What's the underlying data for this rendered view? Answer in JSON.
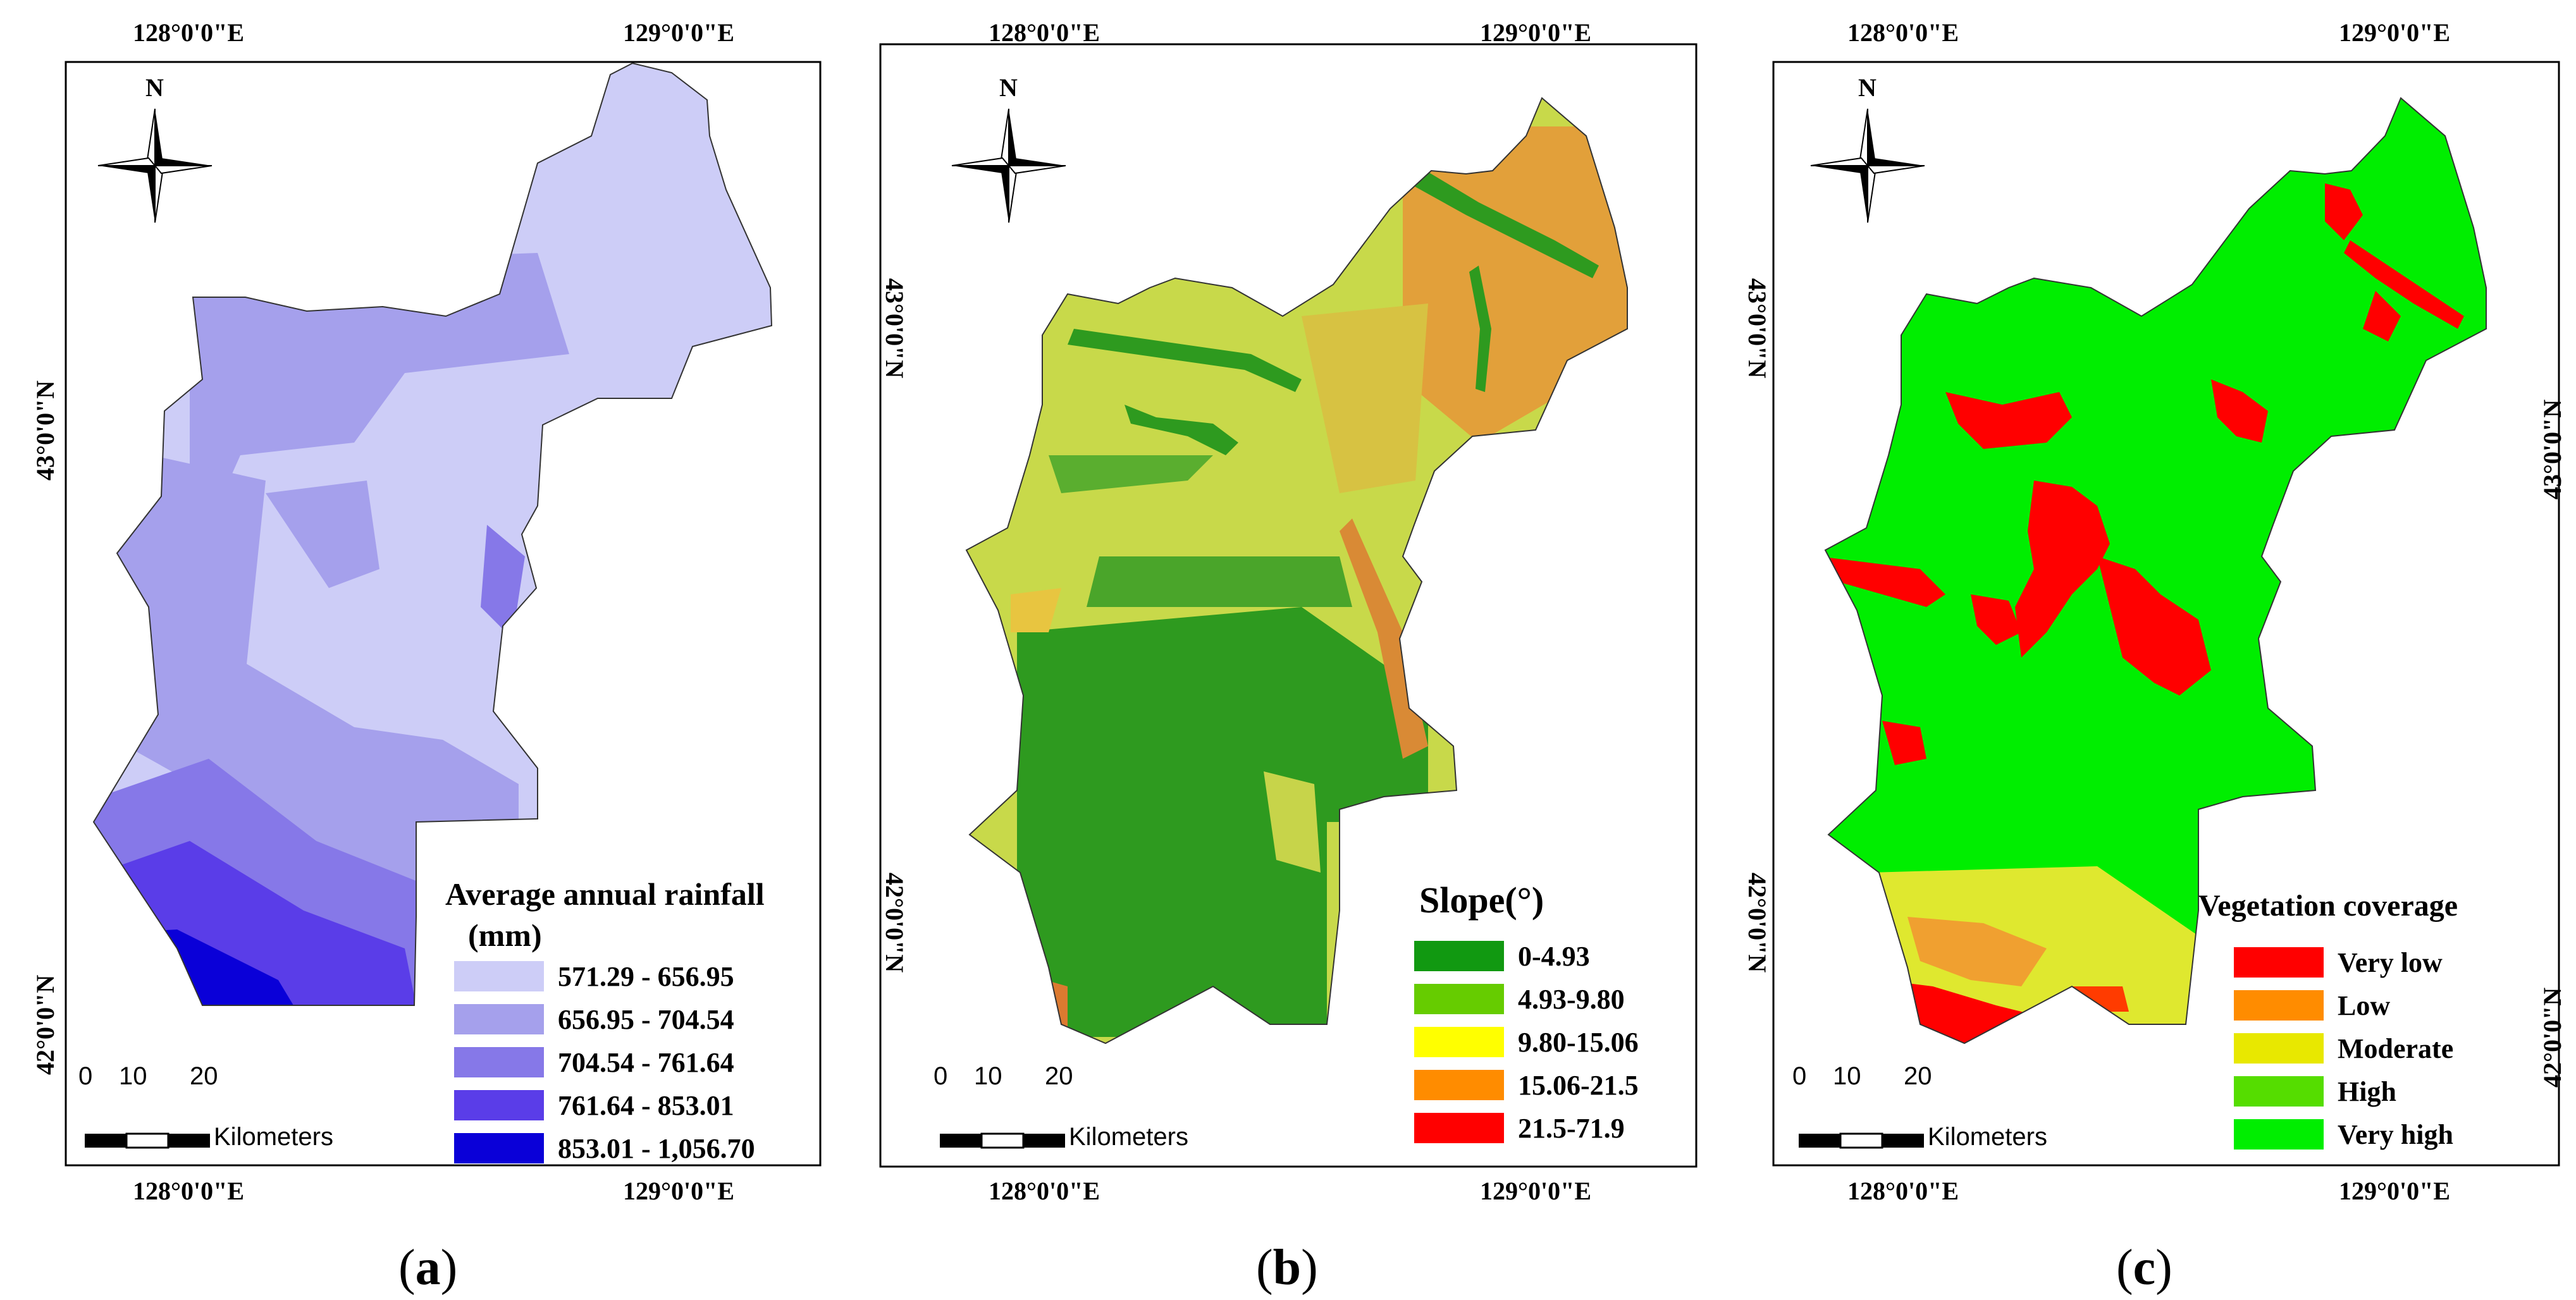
{
  "figure": {
    "panels": [
      {
        "id": "a",
        "caption_letter": "a",
        "top_lon_labels": [
          "128°0'0\"E",
          "129°0'0\"E"
        ],
        "bottom_lon_labels": [
          "128°0'0\"E",
          "129°0'0\"E"
        ],
        "left_lat_labels": [
          "43°0'0\"N",
          "42°0'0\"N"
        ],
        "right_lat_labels": [],
        "legend_title_line1": "Average annual rainfall",
        "legend_title_line2": "(mm)",
        "legend": [
          {
            "label": "571.29 - 656.95",
            "color": "#cdcdf7"
          },
          {
            "label": "656.95 - 704.54",
            "color": "#a5a0ec"
          },
          {
            "label": "704.54 - 761.64",
            "color": "#8678e8"
          },
          {
            "label": "761.64 - 853.01",
            "color": "#5a3de8"
          },
          {
            "label": "853.01 - 1,056.70",
            "color": "#0a00d8"
          }
        ],
        "north": "N",
        "scale_numbers": [
          "0",
          "10",
          "20"
        ],
        "scale_unit": "Kilometers"
      },
      {
        "id": "b",
        "caption_letter": "b",
        "top_lon_labels": [
          "128°0'0\"E",
          "129°0'0\"E"
        ],
        "bottom_lon_labels": [
          "128°0'0\"E",
          "129°0'0\"E"
        ],
        "left_lat_labels": [
          "43°0'0\"N",
          "42°0'0\"N"
        ],
        "right_lat_labels": [],
        "legend_title_line1": "Slope(°)",
        "legend_title_line2": "",
        "legend": [
          {
            "label": "0-4.93",
            "color": "#119911"
          },
          {
            "label": "4.93-9.80",
            "color": "#66cc00"
          },
          {
            "label": "9.80-15.06",
            "color": "#ffff00"
          },
          {
            "label": "15.06-21.5",
            "color": "#ff8c00"
          },
          {
            "label": "21.5-71.9",
            "color": "#ff0000"
          }
        ],
        "north": "N",
        "scale_numbers": [
          "0",
          "10",
          "20"
        ],
        "scale_unit": "Kilometers"
      },
      {
        "id": "c",
        "caption_letter": "c",
        "top_lon_labels": [
          "128°0'0\"E",
          "129°0'0\"E"
        ],
        "bottom_lon_labels": [
          "128°0'0\"E",
          "129°0'0\"E"
        ],
        "left_lat_labels": [
          "43°0'0\"N",
          "42°0'0\"N"
        ],
        "right_lat_labels": [
          "43°0'0\"N",
          "42°0'0\"N"
        ],
        "legend_title_line1": "Vegetation coverage",
        "legend_title_line2": "",
        "legend": [
          {
            "label": "Very low",
            "color": "#ff0000"
          },
          {
            "label": "Low",
            "color": "#ff8c00"
          },
          {
            "label": "Moderate",
            "color": "#e8e800"
          },
          {
            "label": "High",
            "color": "#55dd00"
          },
          {
            "label": "Very high",
            "color": "#00ee00"
          }
        ],
        "north": "N",
        "scale_numbers": [
          "0",
          "10",
          "20"
        ],
        "scale_unit": "Kilometers"
      }
    ]
  }
}
